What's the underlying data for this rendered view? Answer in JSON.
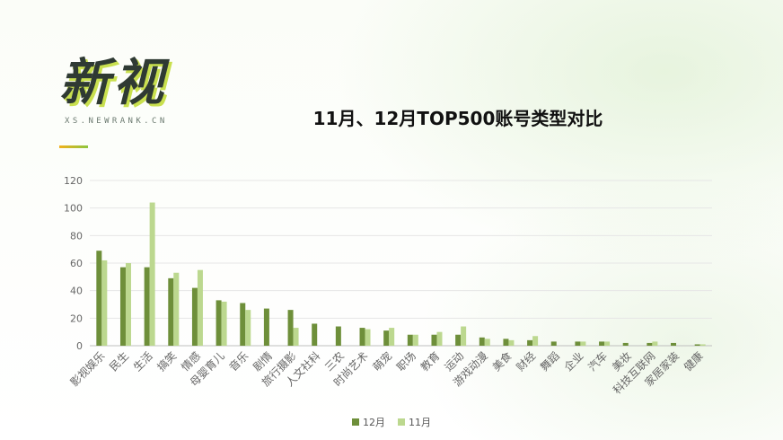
{
  "brand": {
    "name": "新视",
    "domain": "XS.NEWRANK.CN"
  },
  "colors": {
    "dec": "#6e8f3a",
    "nov": "#bcd88f",
    "grid": "#e6e6e6",
    "axis_text": "#666666"
  },
  "chart_data": {
    "type": "bar",
    "title": "11月、12月TOP500账号类型对比",
    "xlabel": "",
    "ylabel": "",
    "ylim": [
      0,
      120
    ],
    "yticks": [
      0,
      20,
      40,
      60,
      80,
      100,
      120
    ],
    "grid": true,
    "legend_position": "bottom",
    "categories": [
      "影视娱乐",
      "民生",
      "生活",
      "搞笑",
      "情感",
      "母婴育儿",
      "音乐",
      "剧情",
      "旅行摄影",
      "人文社科",
      "三农",
      "时尚艺术",
      "萌宠",
      "职场",
      "教育",
      "运动",
      "游戏动漫",
      "美食",
      "财经",
      "舞蹈",
      "企业",
      "汽车",
      "美妆",
      "科技互联网",
      "家居家装",
      "健康"
    ],
    "series": [
      {
        "name": "12月",
        "values": [
          69,
          57,
          57,
          49,
          42,
          33,
          31,
          27,
          26,
          16,
          14,
          13,
          11,
          8,
          8,
          8,
          6,
          5,
          4,
          3,
          3,
          3,
          2,
          2,
          2,
          1
        ]
      },
      {
        "name": "11月",
        "values": [
          62,
          60,
          104,
          53,
          55,
          32,
          26,
          0,
          13,
          0,
          0,
          12,
          13,
          8,
          10,
          14,
          5,
          4,
          7,
          0,
          3,
          3,
          0,
          3,
          0,
          1
        ]
      }
    ]
  }
}
